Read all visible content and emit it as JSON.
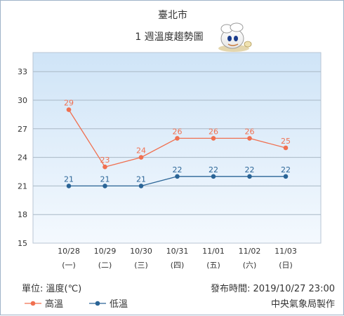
{
  "chart_data": {
    "type": "line",
    "title": "臺北市",
    "subtitle": "1 週溫度趨勢圖",
    "categories": [
      {
        "date": "10/28",
        "weekday": "(一)"
      },
      {
        "date": "10/29",
        "weekday": "(二)"
      },
      {
        "date": "10/30",
        "weekday": "(三)"
      },
      {
        "date": "10/31",
        "weekday": "(四)"
      },
      {
        "date": "11/01",
        "weekday": "(五)"
      },
      {
        "date": "11/02",
        "weekday": "(六)"
      },
      {
        "date": "11/03",
        "weekday": "(日)"
      }
    ],
    "yticks": [
      15,
      18,
      21,
      24,
      27,
      30,
      33
    ],
    "ylim": [
      15,
      35
    ],
    "grid": true,
    "series": [
      {
        "name": "高溫",
        "color": "#f07050",
        "values": [
          29,
          23,
          24,
          26,
          26,
          26,
          25
        ]
      },
      {
        "name": "低溫",
        "color": "#2a6496",
        "values": [
          21,
          21,
          21,
          22,
          22,
          22,
          22
        ]
      }
    ],
    "legend_position": "bottom-left",
    "unit_label": "單位: 溫度(℃)",
    "published_label": "發布時間: 2019/10/27 23:00",
    "source_label": "中央氣象局製作"
  }
}
